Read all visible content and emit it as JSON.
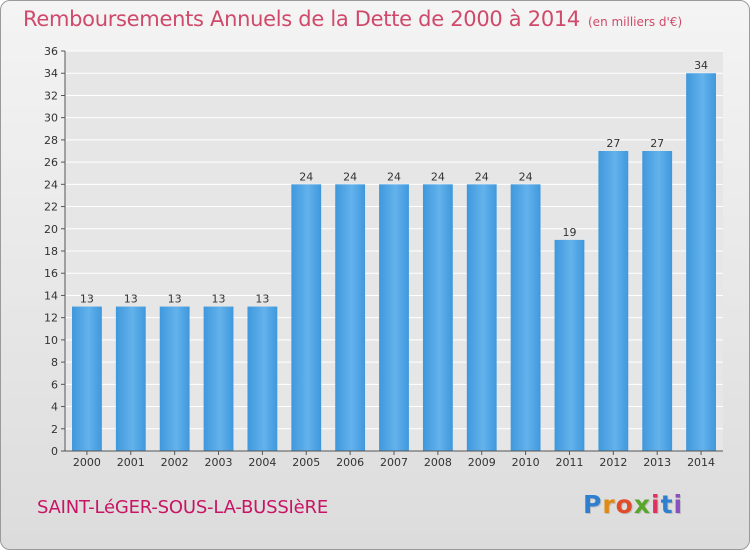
{
  "header": {
    "title": "Remboursements Annuels de la Dette de 2000 à 2014",
    "unit": "(en milliers d'€)"
  },
  "footer": {
    "commune": "SAINT-LéGER-SOUS-LA-BUSSIèRE",
    "logo_letters": [
      "P",
      "r",
      "o",
      "x",
      "i",
      "t",
      "i"
    ],
    "logo_colors": [
      "#2f7fd0",
      "#e08a16",
      "#e04b2a",
      "#5aa62a",
      "#e03060",
      "#2f7fd0",
      "#8a4fc0"
    ]
  },
  "colors": {
    "bar": "#3f98dc",
    "bar_light": "#63b2ec",
    "grid": "#ffffff",
    "axis": "#555555",
    "text": "#333333"
  },
  "chart_data": {
    "type": "bar",
    "title": "Remboursements Annuels de la Dette de 2000 à 2014",
    "xlabel": "",
    "ylabel": "",
    "categories": [
      "2000",
      "2001",
      "2002",
      "2003",
      "2004",
      "2005",
      "2006",
      "2007",
      "2008",
      "2009",
      "2010",
      "2011",
      "2012",
      "2013",
      "2014"
    ],
    "values": [
      13,
      13,
      13,
      13,
      13,
      24,
      24,
      24,
      24,
      24,
      24,
      19,
      27,
      27,
      34
    ],
    "data_labels": [
      "13",
      "13",
      "13",
      "13",
      "13",
      "24",
      "24",
      "24",
      "24",
      "24",
      "24",
      "19",
      "27",
      "27",
      "34"
    ],
    "ylim": [
      0,
      36
    ],
    "yticks": [
      "0",
      "2",
      "4",
      "6",
      "8",
      "10",
      "12",
      "14",
      "16",
      "18",
      "20",
      "22",
      "24",
      "26",
      "28",
      "30",
      "32",
      "34",
      "36"
    ],
    "grid": true,
    "legend": "none"
  }
}
